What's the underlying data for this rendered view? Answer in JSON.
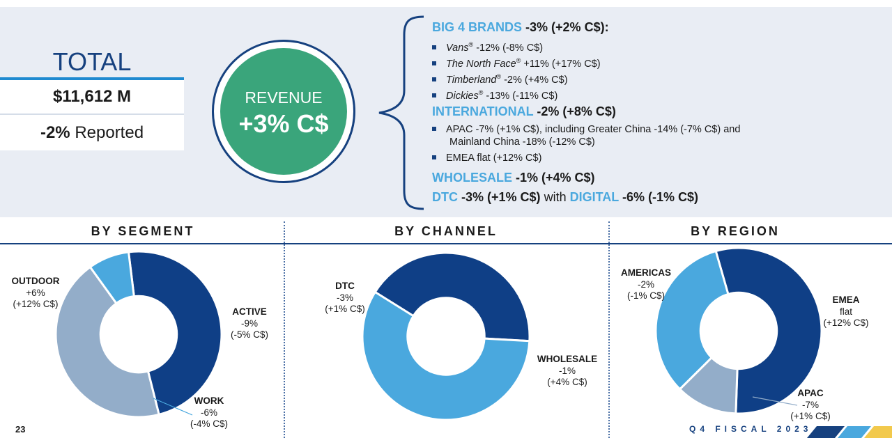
{
  "total": {
    "title": "TOTAL",
    "amount": "$11,612 M",
    "reported_value": "-2%",
    "reported_label": "Reported"
  },
  "revenue": {
    "label": "REVENUE",
    "value": "+3% C$"
  },
  "big4": {
    "heading": "BIG 4 BRANDS",
    "heading_value": "-3% (+2% C$):",
    "items": [
      {
        "brand": "Vans",
        "reg": "®",
        "text": "-12% (-8% C$)"
      },
      {
        "brand": "The North Face",
        "reg": "®",
        "text": "+11% (+17% C$)"
      },
      {
        "brand": "Timberland",
        "reg": "®",
        "text": "-2% (+4% C$)"
      },
      {
        "brand": "Dickies",
        "reg": "®",
        "text": "-13% (-11% C$)"
      }
    ]
  },
  "international": {
    "heading": "INTERNATIONAL",
    "heading_value": "-2% (+8% C$)",
    "items": [
      "APAC -7% (+1% C$), including Greater China -14% (-7% C$) and",
      "Mainland China  -18% (-12% C$)",
      "EMEA flat (+12% C$)"
    ]
  },
  "wholesale_line": {
    "heading": "WHOLESALE",
    "value": "-1% (+4% C$)"
  },
  "dtc_line": {
    "heading": "DTC",
    "value": "-3% (+1% C$)",
    "with": "with",
    "digital": "DIGITAL",
    "digital_value": "-6% (-1% C$)"
  },
  "colors": {
    "dark_blue": "#0f3f86",
    "light_blue": "#4aa8de",
    "gray_blue": "#93adc9",
    "green": "#3aa57b",
    "panel": "#e9edf4"
  },
  "chart_data": [
    {
      "type": "pie",
      "title": "BY SEGMENT",
      "slices": [
        {
          "name": "OUTDOOR",
          "value": 48,
          "change": "+6%",
          "cc_change": "(+12% C$)",
          "color": "#0f3f86"
        },
        {
          "name": "ACTIVE",
          "value": 44,
          "change": "-9%",
          "cc_change": "(-5% C$)",
          "color": "#93adc9"
        },
        {
          "name": "WORK",
          "value": 8,
          "change": "-6%",
          "cc_change": "(-4% C$)",
          "color": "#4aa8de"
        }
      ]
    },
    {
      "type": "pie",
      "title": "BY CHANNEL",
      "slices": [
        {
          "name": "DTC",
          "value": 42,
          "change": "-3%",
          "cc_change": "(+1% C$)",
          "color": "#0f3f86"
        },
        {
          "name": "WHOLESALE",
          "value": 58,
          "change": "-1%",
          "cc_change": "(+4% C$)",
          "color": "#4aa8de"
        }
      ]
    },
    {
      "type": "pie",
      "title": "BY REGION",
      "slices": [
        {
          "name": "AMERICAS",
          "value": 55,
          "change": "-2%",
          "cc_change": "(-1% C$)",
          "color": "#0f3f86"
        },
        {
          "name": "APAC",
          "value": 12,
          "change": "-7%",
          "cc_change": "(+1% C$)",
          "color": "#93adc9"
        },
        {
          "name": "EMEA",
          "value": 33,
          "change": "flat",
          "cc_change": "(+12% C$)",
          "color": "#4aa8de"
        }
      ]
    }
  ],
  "footer": {
    "page": "23",
    "label": "Q4 FISCAL 2023"
  }
}
